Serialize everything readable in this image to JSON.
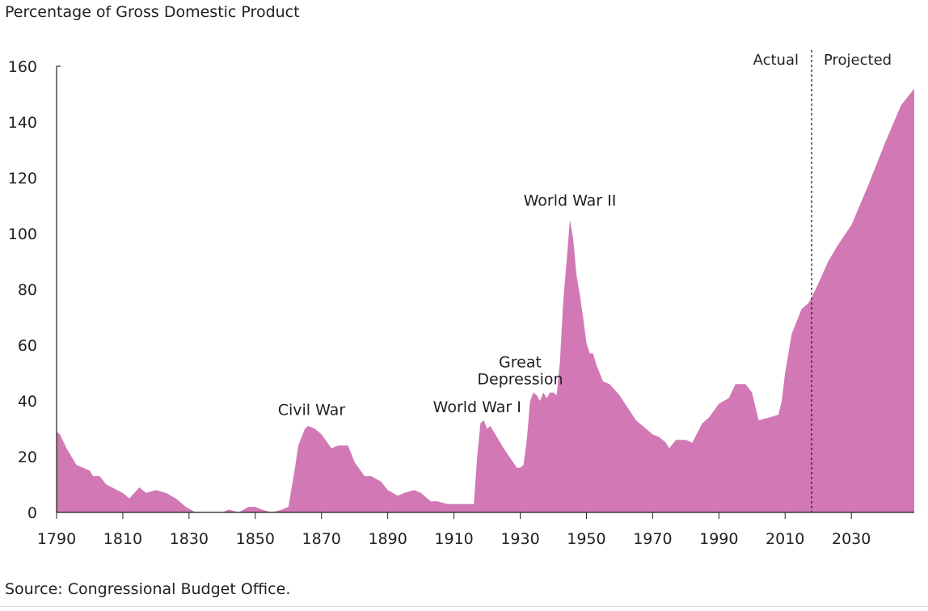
{
  "chart_data": {
    "type": "area",
    "title": "",
    "ylabel": "Percentage of Gross Domestic Product",
    "xlabel": "",
    "source": "Source: Congressional Budget Office.",
    "xlim": [
      1790,
      2049
    ],
    "ylim": [
      0,
      160
    ],
    "x_ticks": [
      1790,
      1810,
      1830,
      1850,
      1870,
      1890,
      1910,
      1930,
      1950,
      1970,
      1990,
      2010,
      2030
    ],
    "y_ticks": [
      0,
      20,
      40,
      60,
      80,
      100,
      120,
      140,
      160
    ],
    "grid": false,
    "fill_color": "#d178b5",
    "divider": {
      "year": 2018,
      "left_label": "Actual",
      "right_label": "Projected"
    },
    "annotations": [
      {
        "text": "Civil War",
        "x": 1867,
        "y": 37
      },
      {
        "text": "World War I",
        "x": 1917,
        "y": 38
      },
      {
        "text": "Great",
        "x": 1930,
        "y": 54
      },
      {
        "text": "Depression",
        "x": 1930,
        "y": 48
      },
      {
        "text": "World War II",
        "x": 1945,
        "y": 112
      }
    ],
    "series": [
      {
        "x": [
          1790,
          1791,
          1793,
          1796,
          1800,
          1801,
          1803,
          1805,
          1810,
          1812,
          1815,
          1817,
          1820,
          1823,
          1826,
          1829,
          1832,
          1835,
          1840,
          1842,
          1845,
          1848,
          1850,
          1852,
          1855,
          1858,
          1860,
          1862,
          1863,
          1865,
          1866,
          1868,
          1870,
          1873,
          1875,
          1878,
          1880,
          1883,
          1885,
          1888,
          1890,
          1893,
          1895,
          1898,
          1900,
          1903,
          1905,
          1908,
          1910,
          1913,
          1916,
          1917,
          1918,
          1919,
          1920,
          1921,
          1922,
          1925,
          1929,
          1930,
          1931,
          1932,
          1933,
          1934,
          1935,
          1936,
          1937,
          1938,
          1939,
          1940,
          1941,
          1942,
          1943,
          1944,
          1945,
          1946,
          1947,
          1948,
          1949,
          1950,
          1951,
          1952,
          1953,
          1955,
          1957,
          1960,
          1965,
          1968,
          1970,
          1972,
          1974,
          1975,
          1977,
          1980,
          1982,
          1985,
          1987,
          1990,
          1993,
          1995,
          1998,
          2000,
          2002,
          2005,
          2008,
          2009,
          2010,
          2012,
          2014,
          2015,
          2016,
          2017,
          2018,
          2020,
          2023,
          2026,
          2030,
          2035,
          2040,
          2045,
          2049
        ],
        "y": [
          29,
          28,
          23,
          17,
          15,
          13,
          13,
          10,
          7,
          5,
          9,
          7,
          8,
          7,
          5,
          2,
          0,
          0,
          0,
          1,
          0,
          2,
          2,
          1,
          0,
          1,
          2,
          16,
          24,
          30,
          31,
          30,
          28,
          23,
          24,
          24,
          18,
          13,
          13,
          11,
          8,
          6,
          7,
          8,
          7,
          4,
          4,
          3,
          3,
          3,
          3,
          20,
          32,
          33,
          30,
          31,
          29,
          23,
          16,
          16,
          17,
          26,
          40,
          43,
          42,
          40,
          43,
          41,
          43,
          43,
          42,
          54,
          76,
          90,
          105,
          98,
          85,
          78,
          70,
          61,
          57,
          57,
          53,
          47,
          46,
          42,
          33,
          30,
          28,
          27,
          25,
          23,
          26,
          26,
          25,
          32,
          34,
          39,
          41,
          46,
          46,
          43,
          33,
          34,
          35,
          40,
          50,
          64,
          70,
          73,
          74,
          75,
          77,
          82,
          90,
          96,
          103,
          117,
          132,
          146,
          152
        ]
      }
    ]
  }
}
